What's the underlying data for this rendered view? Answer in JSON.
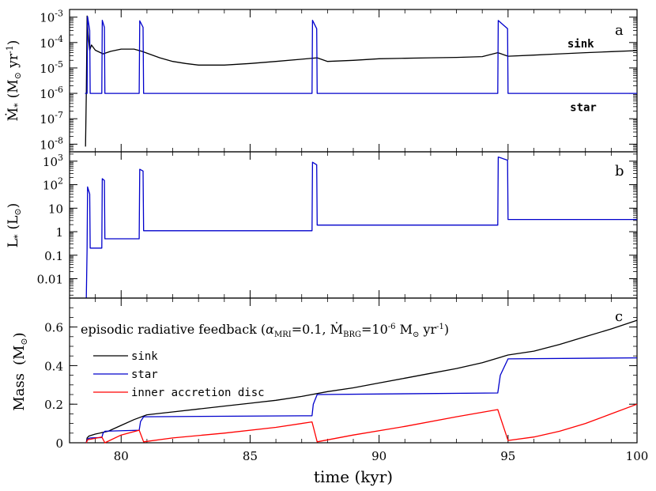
{
  "chart_data": [
    {
      "type": "line",
      "panel_label": "a",
      "ylabel": "Ṁ",
      "ylabel_sub": "*",
      "ylabel_unit": "(M",
      "ylabel_unit_sub": "⊙",
      "ylabel_unit_rest": " yr",
      "ylabel_unit_sup": "-1",
      "ylabel_unit_close": ")",
      "yscale": "log",
      "ylim": [
        5e-09,
        0.002
      ],
      "xlim": [
        78,
        100
      ],
      "yticks": [
        {
          "value": 0.001,
          "label": "10",
          "exp": "-3"
        },
        {
          "value": 0.0001,
          "label": "10",
          "exp": "-4"
        },
        {
          "value": 1e-05,
          "label": "10",
          "exp": "-5"
        },
        {
          "value": 1e-06,
          "label": "10",
          "exp": "-6"
        },
        {
          "value": 1e-07,
          "label": "10",
          "exp": "-7"
        },
        {
          "value": 1e-08,
          "label": "10",
          "exp": "-8"
        }
      ],
      "annotations": [
        {
          "text": "sink",
          "color": "#000000",
          "x": 97.3,
          "y": 6.5e-05
        },
        {
          "text": "star",
          "color": "#0000cc",
          "x": 97.4,
          "y": 2e-07
        }
      ],
      "series": [
        {
          "name": "sink",
          "color": "#000000",
          "points": [
            [
              78.62,
              8e-09
            ],
            [
              78.65,
              1e-06
            ],
            [
              78.68,
              0.0011
            ],
            [
              78.72,
              0.0002
            ],
            [
              78.78,
              5e-05
            ],
            [
              78.85,
              8e-05
            ],
            [
              79.0,
              5e-05
            ],
            [
              79.3,
              3.6e-05
            ],
            [
              79.6,
              4.5e-05
            ],
            [
              80.0,
              5.5e-05
            ],
            [
              80.5,
              5.5e-05
            ],
            [
              80.8,
              4.5e-05
            ],
            [
              81.5,
              2.5e-05
            ],
            [
              82.0,
              1.8e-05
            ],
            [
              82.5,
              1.5e-05
            ],
            [
              83.0,
              1.3e-05
            ],
            [
              84.0,
              1.3e-05
            ],
            [
              85.0,
              1.5e-05
            ],
            [
              86.0,
              1.8e-05
            ],
            [
              87.0,
              2.2e-05
            ],
            [
              87.6,
              2.5e-05
            ],
            [
              88.0,
              1.8e-05
            ],
            [
              89.0,
              2e-05
            ],
            [
              90.0,
              2.3e-05
            ],
            [
              91.0,
              2.4e-05
            ],
            [
              92.0,
              2.5e-05
            ],
            [
              93.0,
              2.6e-05
            ],
            [
              94.0,
              2.8e-05
            ],
            [
              94.6,
              4e-05
            ],
            [
              95.0,
              2.9e-05
            ],
            [
              96.0,
              3.2e-05
            ],
            [
              97.0,
              3.6e-05
            ],
            [
              98.0,
              4e-05
            ],
            [
              99.0,
              4.4e-05
            ],
            [
              100.0,
              4.8e-05
            ]
          ]
        },
        {
          "name": "star",
          "color": "#0000cc",
          "points": [
            [
              78.6,
              1e-06
            ],
            [
              78.68,
              1e-06
            ],
            [
              78.7,
              0.00105
            ],
            [
              78.78,
              0.0003
            ],
            [
              78.8,
              1e-06
            ],
            [
              79.25,
              1e-06
            ],
            [
              79.27,
              0.00075
            ],
            [
              79.35,
              0.0004
            ],
            [
              79.37,
              1e-06
            ],
            [
              80.7,
              1e-06
            ],
            [
              80.72,
              0.00072
            ],
            [
              80.85,
              0.0004
            ],
            [
              80.87,
              1e-06
            ],
            [
              87.4,
              1e-06
            ],
            [
              87.42,
              0.00075
            ],
            [
              87.58,
              0.00035
            ],
            [
              87.6,
              1e-06
            ],
            [
              94.6,
              1e-06
            ],
            [
              94.62,
              0.00074
            ],
            [
              94.98,
              0.00035
            ],
            [
              95.0,
              1e-06
            ],
            [
              100.0,
              1e-06
            ]
          ]
        }
      ]
    },
    {
      "type": "line",
      "panel_label": "b",
      "ylabel": "L",
      "ylabel_sub": "*",
      "ylabel_unit": "(L",
      "ylabel_unit_sub": "⊙",
      "ylabel_unit_close": ")",
      "yscale": "log",
      "ylim": [
        0.0015,
        2500
      ],
      "xlim": [
        78,
        100
      ],
      "yticks": [
        {
          "value": 1000,
          "label": "10",
          "exp": "3"
        },
        {
          "value": 100,
          "label": "10",
          "exp": "2"
        },
        {
          "value": 10,
          "label": "10",
          "exp": ""
        },
        {
          "value": 1,
          "label": "1",
          "exp": ""
        },
        {
          "value": 0.1,
          "label": "0.1",
          "exp": ""
        },
        {
          "value": 0.01,
          "label": "0.01",
          "exp": ""
        }
      ],
      "series": [
        {
          "name": "star",
          "color": "#0000cc",
          "points": [
            [
              78.65,
              0.0015
            ],
            [
              78.68,
              0.2
            ],
            [
              78.7,
              80
            ],
            [
              78.78,
              40
            ],
            [
              78.8,
              0.2
            ],
            [
              79.25,
              0.2
            ],
            [
              79.27,
              180
            ],
            [
              79.35,
              150
            ],
            [
              79.37,
              0.5
            ],
            [
              80.7,
              0.5
            ],
            [
              80.72,
              450
            ],
            [
              80.85,
              380
            ],
            [
              80.87,
              1.1
            ],
            [
              87.4,
              1.1
            ],
            [
              87.42,
              900
            ],
            [
              87.58,
              700
            ],
            [
              87.6,
              1.9
            ],
            [
              94.6,
              1.9
            ],
            [
              94.62,
              1500
            ],
            [
              94.98,
              1100
            ],
            [
              95.0,
              3.3
            ],
            [
              100.0,
              3.3
            ]
          ]
        }
      ]
    },
    {
      "type": "line",
      "panel_label": "c",
      "title_prefix": "episodic radiative feedback (",
      "title_alpha": "α",
      "title_alpha_sub": "MRI",
      "title_alpha_val": "=0.1, ",
      "title_mdot": "Ṁ",
      "title_mdot_sub": "BRG",
      "title_mdot_val": "=10",
      "title_mdot_exp": "-6",
      "title_unit": " M",
      "title_unit_sub": "⊙",
      "title_unit_rest": " yr",
      "title_unit_sup": "-1",
      "title_close": ")",
      "ylabel": "Mass",
      "ylabel_unit": "(M",
      "ylabel_unit_sub": "⊙",
      "ylabel_unit_close": ")",
      "xlabel": "time (kyr)",
      "yscale": "linear",
      "ylim": [
        0,
        0.75
      ],
      "xlim": [
        78,
        100
      ],
      "yticks": [
        {
          "value": 0,
          "label": "0"
        },
        {
          "value": 0.2,
          "label": "0.2"
        },
        {
          "value": 0.4,
          "label": "0.4"
        },
        {
          "value": 0.6,
          "label": "0.6"
        }
      ],
      "xticks": [
        {
          "value": 80,
          "label": "80"
        },
        {
          "value": 85,
          "label": "85"
        },
        {
          "value": 90,
          "label": "90"
        },
        {
          "value": 95,
          "label": "95"
        },
        {
          "value": 100,
          "label": "100"
        }
      ],
      "legend": "upper-left",
      "series": [
        {
          "name": "sink",
          "color": "#000000",
          "points": [
            [
              78.65,
              0.0
            ],
            [
              78.68,
              0.025
            ],
            [
              78.75,
              0.035
            ],
            [
              79.0,
              0.045
            ],
            [
              79.5,
              0.06
            ],
            [
              80.0,
              0.09
            ],
            [
              80.5,
              0.12
            ],
            [
              81.0,
              0.145
            ],
            [
              82.0,
              0.16
            ],
            [
              83.0,
              0.175
            ],
            [
              84.0,
              0.19
            ],
            [
              85.0,
              0.205
            ],
            [
              86.0,
              0.22
            ],
            [
              87.0,
              0.24
            ],
            [
              88.0,
              0.265
            ],
            [
              89.0,
              0.285
            ],
            [
              90.0,
              0.31
            ],
            [
              91.0,
              0.335
            ],
            [
              92.0,
              0.36
            ],
            [
              93.0,
              0.385
            ],
            [
              94.0,
              0.415
            ],
            [
              95.0,
              0.455
            ],
            [
              96.0,
              0.475
            ],
            [
              97.0,
              0.51
            ],
            [
              98.0,
              0.55
            ],
            [
              99.0,
              0.59
            ],
            [
              100.0,
              0.635
            ]
          ]
        },
        {
          "name": "star",
          "color": "#0000cc",
          "points": [
            [
              78.65,
              0.0
            ],
            [
              78.7,
              0.02
            ],
            [
              78.8,
              0.025
            ],
            [
              79.25,
              0.027
            ],
            [
              79.3,
              0.05
            ],
            [
              79.37,
              0.06
            ],
            [
              80.7,
              0.065
            ],
            [
              80.75,
              0.11
            ],
            [
              80.87,
              0.135
            ],
            [
              87.4,
              0.14
            ],
            [
              87.45,
              0.2
            ],
            [
              87.6,
              0.25
            ],
            [
              94.6,
              0.258
            ],
            [
              94.7,
              0.35
            ],
            [
              95.0,
              0.435
            ],
            [
              100.0,
              0.44
            ]
          ]
        },
        {
          "name": "inner accretion disc",
          "color": "#ff0000",
          "points": [
            [
              78.65,
              0.0
            ],
            [
              78.7,
              0.015
            ],
            [
              79.25,
              0.03
            ],
            [
              79.37,
              0.0
            ],
            [
              80.0,
              0.04
            ],
            [
              80.7,
              0.065
            ],
            [
              80.87,
              0.005
            ],
            [
              82.0,
              0.025
            ],
            [
              84.0,
              0.05
            ],
            [
              86.0,
              0.08
            ],
            [
              87.4,
              0.108
            ],
            [
              87.6,
              0.005
            ],
            [
              89.0,
              0.04
            ],
            [
              91.0,
              0.085
            ],
            [
              93.0,
              0.135
            ],
            [
              94.6,
              0.172
            ],
            [
              95.0,
              0.012
            ],
            [
              96.0,
              0.03
            ],
            [
              97.0,
              0.06
            ],
            [
              98.0,
              0.1
            ],
            [
              99.0,
              0.15
            ],
            [
              100.0,
              0.2
            ]
          ]
        }
      ]
    }
  ]
}
